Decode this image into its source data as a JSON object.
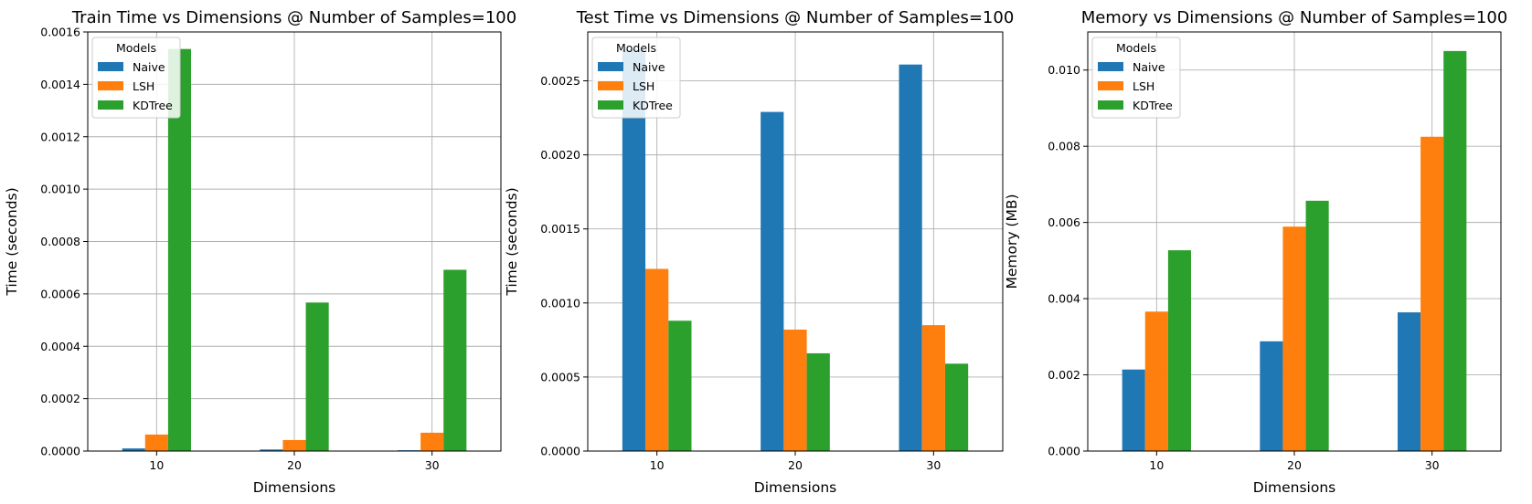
{
  "chart_data": [
    {
      "type": "bar",
      "title": "Train Time vs Dimensions @ Number of Samples=100",
      "xlabel": "Dimensions",
      "ylabel": "Time (seconds)",
      "categories": [
        "10",
        "20",
        "30"
      ],
      "ylim": [
        0,
        0.0016
      ],
      "yticks": [
        "0.0000",
        "0.0002",
        "0.0004",
        "0.0006",
        "0.0008",
        "0.0010",
        "0.0012",
        "0.0014",
        "0.0016"
      ],
      "grid": true,
      "legend": {
        "title": "Models",
        "placement": "top-left"
      },
      "series": [
        {
          "name": "Naive",
          "color": "#1f77b4",
          "values": [
            1e-05,
            6e-06,
            3e-06
          ]
        },
        {
          "name": "LSH",
          "color": "#ff7f0e",
          "values": [
            6.3e-05,
            4.2e-05,
            7e-05
          ]
        },
        {
          "name": "KDTree",
          "color": "#2ca02c",
          "values": [
            0.001535,
            0.000567,
            0.000692
          ]
        }
      ]
    },
    {
      "type": "bar",
      "title": "Test Time vs Dimensions @ Number of Samples=100",
      "xlabel": "Dimensions",
      "ylabel": "Time (seconds)",
      "categories": [
        "10",
        "20",
        "30"
      ],
      "ylim": [
        0,
        0.00283
      ],
      "yticks": [
        "0.0000",
        "0.0005",
        "0.0010",
        "0.0015",
        "0.0020",
        "0.0025"
      ],
      "grid": true,
      "legend": {
        "title": "Models",
        "placement": "top-left"
      },
      "series": [
        {
          "name": "Naive",
          "color": "#1f77b4",
          "values": [
            0.00271,
            0.00229,
            0.00261
          ]
        },
        {
          "name": "LSH",
          "color": "#ff7f0e",
          "values": [
            0.00123,
            0.00082,
            0.00085
          ]
        },
        {
          "name": "KDTree",
          "color": "#2ca02c",
          "values": [
            0.00088,
            0.00066,
            0.00059
          ]
        }
      ]
    },
    {
      "type": "bar",
      "title": "Memory vs Dimensions @ Number of Samples=100",
      "xlabel": "Dimensions",
      "ylabel": "Memory (MB)",
      "categories": [
        "10",
        "20",
        "30"
      ],
      "ylim": [
        0,
        0.011
      ],
      "yticks": [
        "0.000",
        "0.002",
        "0.004",
        "0.006",
        "0.008",
        "0.010"
      ],
      "grid": true,
      "legend": {
        "title": "Models",
        "placement": "top-left"
      },
      "series": [
        {
          "name": "Naive",
          "color": "#1f77b4",
          "values": [
            0.00214,
            0.00288,
            0.00364
          ]
        },
        {
          "name": "LSH",
          "color": "#ff7f0e",
          "values": [
            0.00366,
            0.00589,
            0.00825
          ]
        },
        {
          "name": "KDTree",
          "color": "#2ca02c",
          "values": [
            0.00527,
            0.00657,
            0.0105
          ]
        }
      ]
    }
  ]
}
